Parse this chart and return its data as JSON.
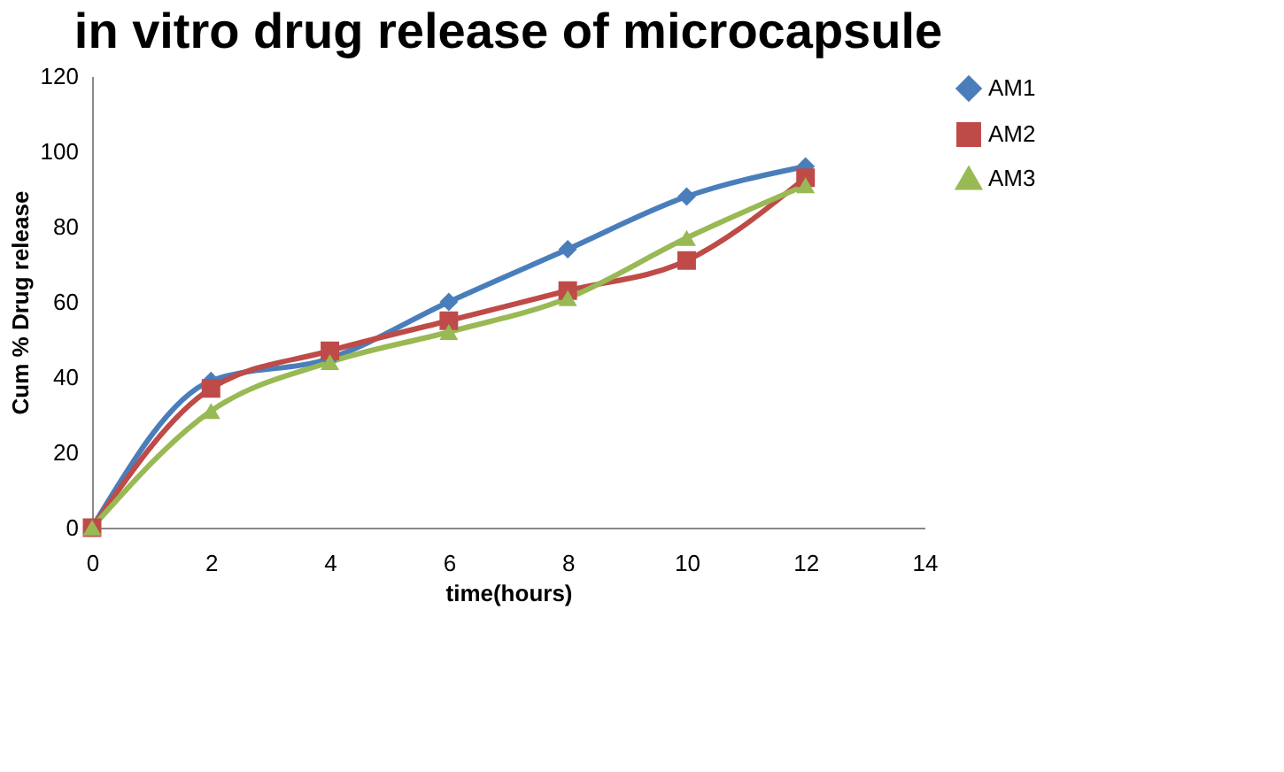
{
  "chart_data": {
    "type": "line",
    "title": "in vitro drug release of microcapsule",
    "xlabel": "time(hours)",
    "ylabel": "Cum  % Drug  release",
    "x": [
      0,
      2,
      4,
      6,
      8,
      10,
      12
    ],
    "xlim": [
      0,
      14
    ],
    "xticks": [
      0,
      2,
      4,
      6,
      8,
      10,
      12,
      14
    ],
    "ylim": [
      0,
      120
    ],
    "yticks": [
      0,
      20,
      40,
      60,
      80,
      100,
      120
    ],
    "grid": false,
    "legend": "right",
    "line_style": "solid",
    "series": [
      {
        "name": "AM1",
        "color": "#4a7ebb",
        "marker": "diamond",
        "values": [
          0,
          39,
          45,
          60,
          74,
          88,
          96
        ]
      },
      {
        "name": "AM2",
        "color": "#be4b48",
        "marker": "square",
        "values": [
          0,
          37,
          47,
          55,
          63,
          71,
          93
        ]
      },
      {
        "name": "AM3",
        "color": "#98b954",
        "marker": "triangle",
        "values": [
          0,
          31,
          44,
          52,
          61,
          77,
          91
        ]
      }
    ]
  }
}
